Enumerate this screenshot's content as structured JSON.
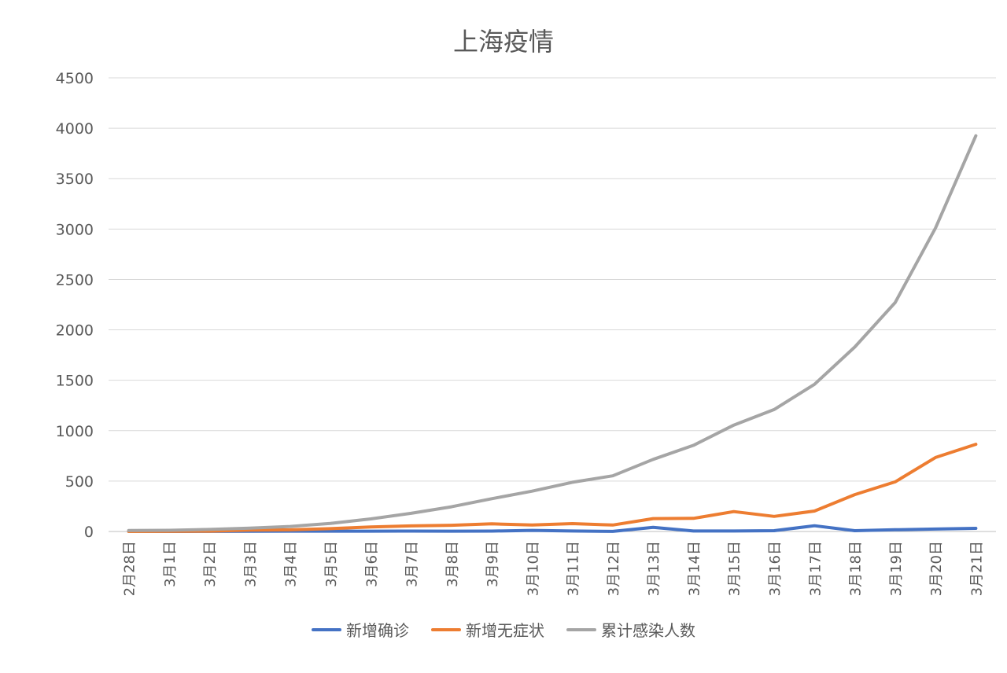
{
  "chart_data": {
    "type": "line",
    "title": "上海疫情",
    "xlabel": "",
    "ylabel": "",
    "ylim": [
      0,
      4500
    ],
    "yticks": [
      0,
      500,
      1000,
      1500,
      2000,
      2500,
      3000,
      3500,
      4000,
      4500
    ],
    "grid": true,
    "legend_position": "bottom",
    "categories": [
      "2月28日",
      "3月1日",
      "3月2日",
      "3月3日",
      "3月4日",
      "3月5日",
      "3月6日",
      "3月7日",
      "3月8日",
      "3月9日",
      "3月10日",
      "3月11日",
      "3月12日",
      "3月13日",
      "3月14日",
      "3月15日",
      "3月16日",
      "3月17日",
      "3月18日",
      "3月19日",
      "3月20日",
      "3月21日"
    ],
    "series": [
      {
        "name": "新增确诊",
        "color": "#4472C4",
        "values": [
          1,
          0,
          1,
          2,
          3,
          3,
          3,
          4,
          3,
          4,
          11,
          5,
          1,
          41,
          5,
          5,
          8,
          57,
          8,
          17,
          24,
          31
        ]
      },
      {
        "name": "新增无症状",
        "color": "#ED7D31",
        "values": [
          0,
          1,
          3,
          14,
          16,
          28,
          45,
          55,
          62,
          76,
          64,
          78,
          64,
          128,
          130,
          197,
          150,
          203,
          366,
          492,
          734,
          865
        ]
      },
      {
        "name": "累计感染人数",
        "color": "#A5A5A5",
        "values": [
          10,
          12,
          20,
          33,
          50,
          80,
          125,
          180,
          245,
          325,
          400,
          488,
          552,
          715,
          855,
          1055,
          1210,
          1460,
          1830,
          2270,
          3010,
          3925
        ]
      }
    ]
  }
}
